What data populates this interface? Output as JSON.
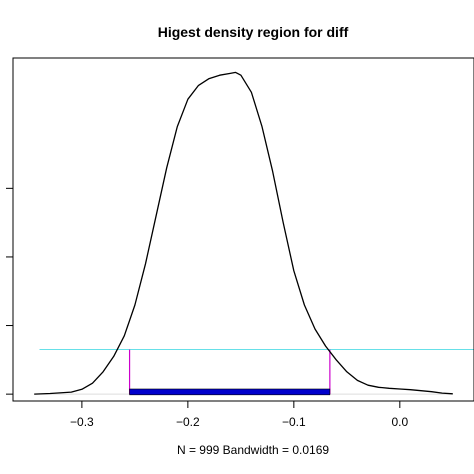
{
  "chart_data": {
    "type": "line",
    "title": "Higest density region for diff",
    "subtitle": "N = 999   Bandwidth = 0.0169",
    "xlabel": "",
    "ylabel": "",
    "xlim": [
      -0.365,
      0.07
    ],
    "ylim": [
      -0.2,
      9.8
    ],
    "grid": false,
    "x_ticks": [
      -0.3,
      -0.2,
      -0.1,
      0.0
    ],
    "x_tick_labels": [
      "−0.3",
      "−0.2",
      "−0.1",
      "0.0"
    ],
    "y_ticks": [
      0,
      2,
      4,
      6
    ],
    "y_tick_labels": [
      "",
      "",
      "",
      ""
    ],
    "series": [
      {
        "color": "#000000",
        "x": [
          -0.345,
          -0.33,
          -0.31,
          -0.3,
          -0.29,
          -0.28,
          -0.27,
          -0.26,
          -0.25,
          -0.24,
          -0.23,
          -0.22,
          -0.21,
          -0.2,
          -0.19,
          -0.18,
          -0.17,
          -0.16,
          -0.155,
          -0.15,
          -0.14,
          -0.13,
          -0.12,
          -0.11,
          -0.1,
          -0.09,
          -0.08,
          -0.07,
          -0.06,
          -0.05,
          -0.04,
          -0.03,
          -0.02,
          -0.01,
          0.0,
          0.01,
          0.02,
          0.03,
          0.04,
          0.05
        ],
        "y": [
          0.0,
          0.02,
          0.06,
          0.14,
          0.32,
          0.65,
          1.1,
          1.7,
          2.6,
          3.8,
          5.2,
          6.6,
          7.8,
          8.6,
          9.0,
          9.2,
          9.3,
          9.35,
          9.38,
          9.3,
          8.8,
          7.8,
          6.5,
          5.0,
          3.6,
          2.6,
          1.9,
          1.4,
          1.0,
          0.65,
          0.4,
          0.26,
          0.2,
          0.17,
          0.15,
          0.13,
          0.1,
          0.07,
          0.03,
          0.01
        ]
      }
    ],
    "hdr": {
      "level_line_y": 1.3,
      "level_color": "#66e0e8",
      "interval": [
        -0.255,
        -0.066
      ],
      "interval_color": "#0000cc",
      "edge_color": "#cc00cc"
    }
  }
}
